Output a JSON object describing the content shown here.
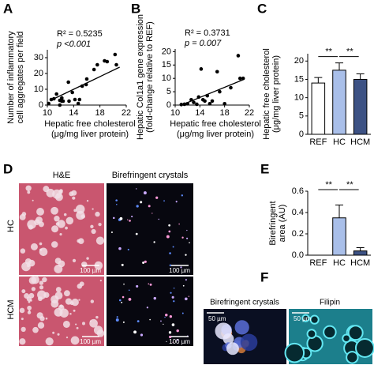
{
  "chart_data": [
    {
      "type": "scatter",
      "x": [
        10.2,
        10.6,
        11.0,
        11.4,
        11.9,
        11.9,
        12.2,
        12.2,
        12.4,
        13.2,
        13.3,
        13.8,
        14.2,
        14.7,
        14.9,
        15.3,
        15.9,
        16.0,
        17.1,
        17.6,
        19.1,
        20.3,
        20.5,
        18.7
      ],
      "values": [
        1,
        3.5,
        4,
        7,
        3,
        0,
        2.5,
        4.5,
        2.5,
        14.5,
        2.5,
        8,
        3.5,
        1,
        3.5,
        12,
        13,
        16.5,
        22.5,
        25.5,
        27.5,
        32,
        25.5,
        28
      ],
      "fit": {
        "x": [
          10.5,
          21
        ],
        "y": [
          3,
          24
        ]
      },
      "xlim": [
        10,
        22
      ],
      "xticks": [
        10,
        14,
        18,
        22
      ],
      "ylim": [
        0,
        35
      ],
      "yticks": [
        0,
        10,
        20,
        30
      ],
      "ylabel": [
        "Number of inflammatory",
        "cell aggregates per field"
      ],
      "xlabel": [
        "Hepatic free cholesterol",
        "(μg/mg liver protein)"
      ],
      "annotations": [
        "R² = 0.5235",
        "p <0.001"
      ]
    },
    {
      "type": "scatter",
      "x": [
        11.0,
        11.5,
        12.0,
        12.6,
        13.0,
        13.5,
        13.8,
        14.2,
        14.5,
        14.8,
        15.2,
        15.6,
        16.0,
        16.8,
        17.2,
        18.0,
        19.0,
        20.2,
        20.5,
        21.0
      ],
      "values": [
        0.2,
        0.3,
        0.5,
        2,
        1,
        0.3,
        3,
        13.5,
        2,
        1.5,
        3.5,
        0.5,
        1.5,
        12.5,
        5,
        0.5,
        6.5,
        18.5,
        10,
        10
      ],
      "fit": {
        "x": [
          11,
          21
        ],
        "y": [
          0,
          9.5
        ]
      },
      "xlim": [
        10,
        22
      ],
      "xticks": [
        10,
        14,
        18,
        22
      ],
      "ylim": [
        0,
        21
      ],
      "yticks": [
        0,
        5,
        10,
        15,
        20
      ],
      "ylabel": [
        "Hepatic Col1a1 gene expression",
        "(fold-change relative to REF)"
      ],
      "xlabel": [
        "Hepatic free cholesterol",
        "(μg/mg liver protein)"
      ],
      "annotations": [
        "R² = 0.3731",
        "p = 0.007"
      ]
    },
    {
      "type": "bar",
      "categories": [
        "REF",
        "HC",
        "HCM"
      ],
      "values": [
        14,
        17.5,
        15
      ],
      "errors": [
        1.5,
        2,
        1.5
      ],
      "colors": [
        "#ffffff",
        "#a9bfe9",
        "#3d5284"
      ],
      "ylim": [
        0,
        22
      ],
      "yticks": [
        0,
        5,
        10,
        15,
        20
      ],
      "ylabel": [
        "Hepatic free cholesterol",
        "(μg/mg liver protein)"
      ],
      "significance": [
        "**",
        "**"
      ]
    },
    {
      "type": "bar",
      "categories": [
        "REF",
        "HC",
        "HCM"
      ],
      "values": [
        0,
        0.35,
        0.04
      ],
      "errors": [
        0,
        0.12,
        0.03
      ],
      "colors": [
        "#ffffff",
        "#a9bfe9",
        "#3d5284"
      ],
      "ylim": [
        0,
        0.6
      ],
      "yticks": [
        {
          "value": 0,
          "label": "0.0"
        },
        0.2,
        0.4,
        0.6
      ],
      "ylabel": [
        "Birefringent",
        "area (AU)"
      ],
      "significance": [
        "**",
        "**"
      ]
    }
  ],
  "figure": {
    "panel_labels": [
      "A",
      "B",
      "C",
      "D",
      "E",
      "F"
    ],
    "d_columns": [
      "H&E",
      "Birefringent crystals"
    ],
    "d_rows": [
      "HC",
      "HCM"
    ],
    "d_scale": [
      "100 µm",
      "100 µm",
      "100 µm",
      "100 µm"
    ],
    "f_columns": [
      "Birefringent crystals",
      "Filipin"
    ],
    "f_scale": [
      "50 µm",
      "50 µm"
    ]
  }
}
